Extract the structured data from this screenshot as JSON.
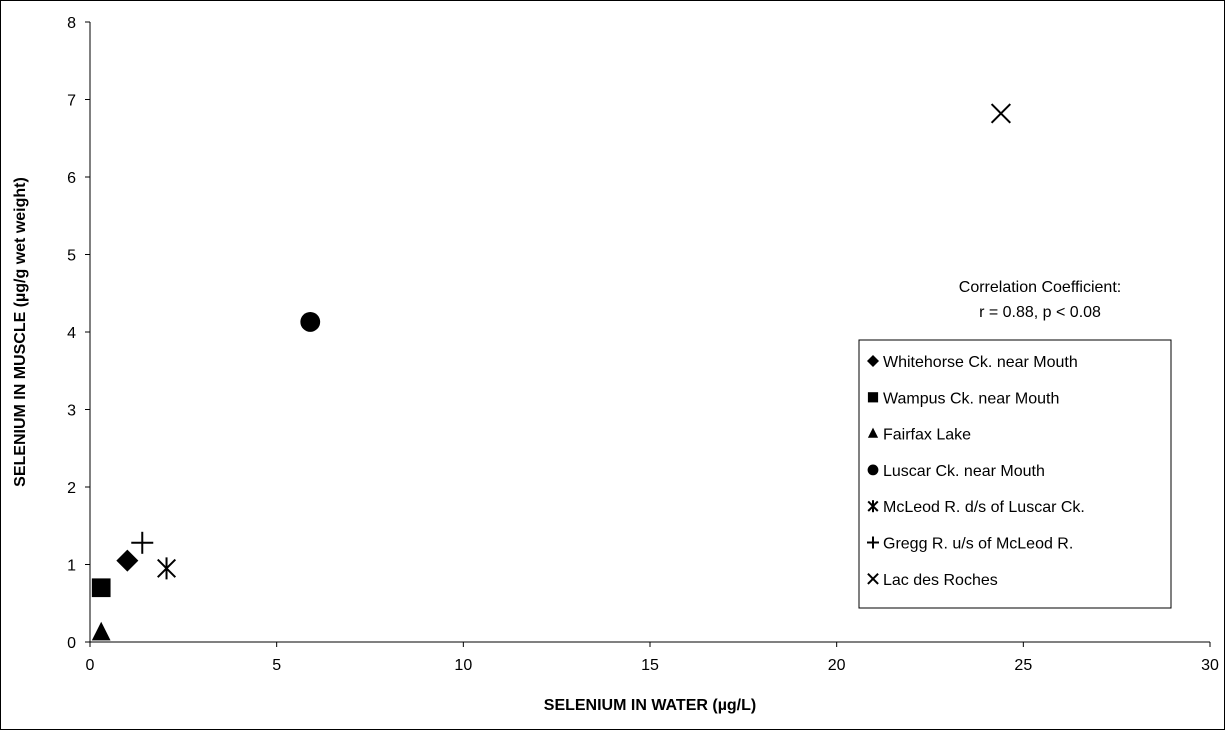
{
  "chart_data": {
    "type": "scatter",
    "title": "",
    "xlabel": "SELENIUM IN WATER (µg/L)",
    "ylabel": "SELENIUM IN MUSCLE (µg/g wet weight)",
    "xlim": [
      0,
      30
    ],
    "ylim": [
      0,
      8
    ],
    "xticks": [
      "0",
      "5",
      "10",
      "15",
      "20",
      "25",
      "30"
    ],
    "yticks": [
      "0",
      "1",
      "2",
      "3",
      "4",
      "5",
      "6",
      "7",
      "8"
    ],
    "grid": false,
    "legend_position": "right",
    "annotation": [
      "Correlation Coefficient:",
      "r = 0.88, p < 0.08"
    ],
    "series": [
      {
        "name": "Whitehorse Ck. near Mouth",
        "marker": "diamond",
        "points": [
          {
            "x": 1.0,
            "y": 1.05
          }
        ]
      },
      {
        "name": "Wampus Ck. near Mouth",
        "marker": "square",
        "points": [
          {
            "x": 0.3,
            "y": 0.7
          }
        ]
      },
      {
        "name": "Fairfax Lake",
        "marker": "triangle",
        "points": [
          {
            "x": 0.3,
            "y": 0.12
          }
        ]
      },
      {
        "name": "Luscar Ck. near Mouth",
        "marker": "circle",
        "points": [
          {
            "x": 5.9,
            "y": 4.13
          }
        ]
      },
      {
        "name": "McLeod R. d/s of Luscar Ck.",
        "marker": "asterisk",
        "points": [
          {
            "x": 2.05,
            "y": 0.95
          }
        ]
      },
      {
        "name": "Gregg R. u/s of McLeod R.",
        "marker": "plus",
        "points": [
          {
            "x": 1.4,
            "y": 1.28
          }
        ]
      },
      {
        "name": "Lac des Roches",
        "marker": "x",
        "points": [
          {
            "x": 24.4,
            "y": 6.82
          }
        ]
      }
    ]
  }
}
